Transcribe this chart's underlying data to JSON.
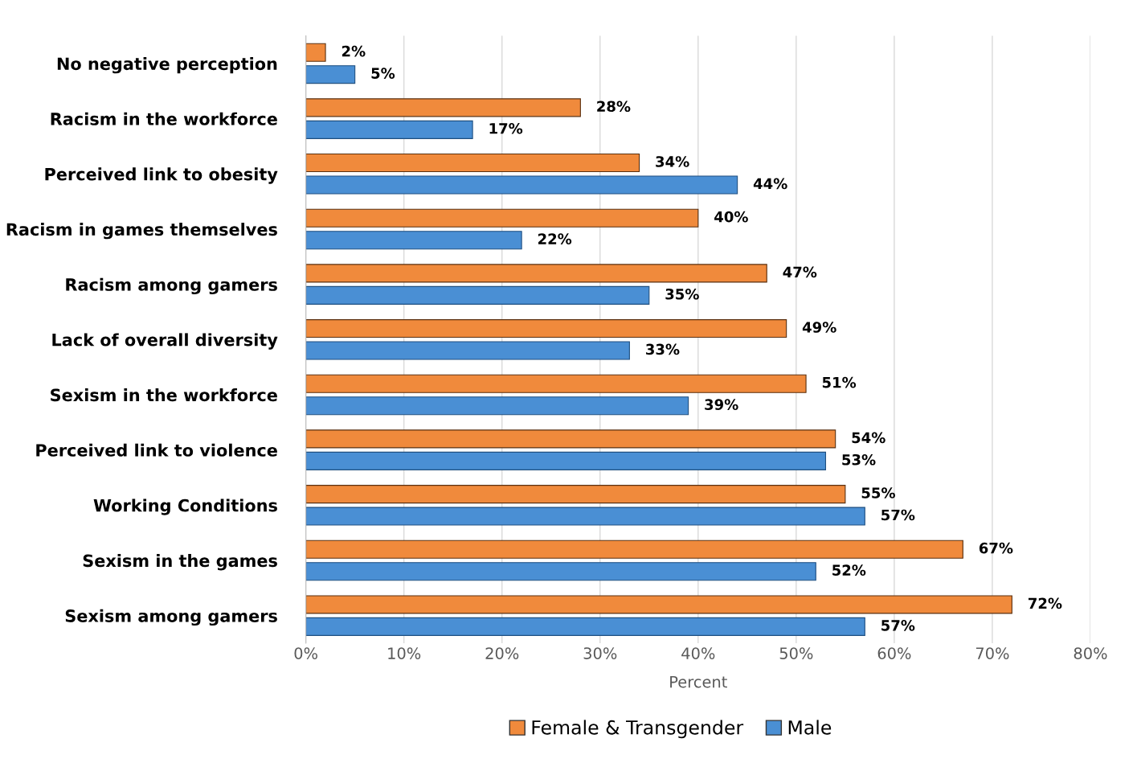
{
  "chart_data": {
    "type": "bar",
    "orientation": "horizontal",
    "xlabel": "Percent",
    "categories": [
      "No negative perception",
      "Racism in the workforce",
      "Perceived link to obesity",
      "Racism in games themselves",
      "Racism among gamers",
      "Lack of overall diversity",
      "Sexism in the workforce",
      "Perceived link to violence",
      "Working Conditions",
      "Sexism in the games",
      "Sexism among gamers"
    ],
    "series": [
      {
        "name": "Female & Transgender",
        "color": "#f08a3c",
        "values": [
          2,
          28,
          34,
          40,
          47,
          49,
          51,
          54,
          55,
          67,
          72
        ],
        "value_labels": [
          "2%",
          "28%",
          "34%",
          "40%",
          "47%",
          "49%",
          "51%",
          "54%",
          "55%",
          "67%",
          "72%"
        ]
      },
      {
        "name": "Male",
        "color": "#4a8fd4",
        "values": [
          5,
          17,
          44,
          22,
          35,
          33,
          39,
          53,
          57,
          52,
          57
        ],
        "value_labels": [
          "5%",
          "17%",
          "44%",
          "22%",
          "35%",
          "33%",
          "39%",
          "53%",
          "57%",
          "52%",
          "57%"
        ]
      }
    ],
    "xlim": [
      0,
      80
    ],
    "xticks": [
      {
        "value": 0,
        "label": "0%"
      },
      {
        "value": 10,
        "label": "10%"
      },
      {
        "value": 20,
        "label": "20%"
      },
      {
        "value": 30,
        "label": "30%"
      },
      {
        "value": 40,
        "label": "40%"
      },
      {
        "value": 50,
        "label": "50%"
      },
      {
        "value": 60,
        "label": "60%"
      },
      {
        "value": 70,
        "label": "70%"
      },
      {
        "value": 80,
        "label": "80%"
      }
    ],
    "grid": "x",
    "legend": "bottom"
  }
}
